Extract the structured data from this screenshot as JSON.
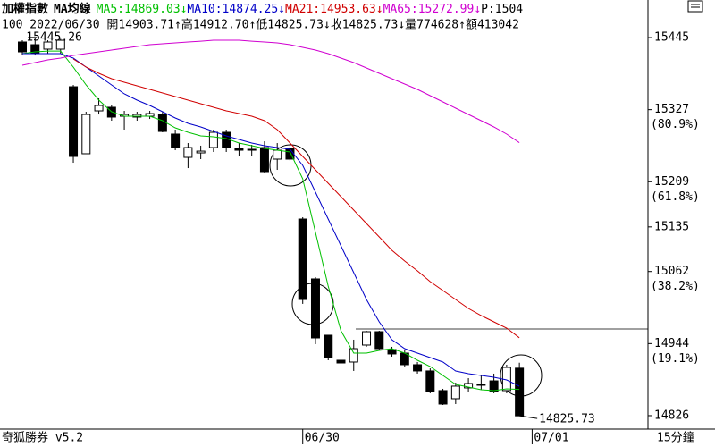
{
  "chart_data": {
    "type": "candlestick",
    "title": "加權指數",
    "subtitle": "MA均線",
    "header_tail": "P:1504",
    "quote_line": "100 2022/06/30 開14903.71↑高14912.70↑低14825.73↓收14825.73↓量774628↑額413042",
    "footer_left": "奇狐勝券 v5.2",
    "period": "15分鐘",
    "annotations": [
      "15445.26",
      "14825.73"
    ],
    "up_color": "#ffffff",
    "down_color": "#000000",
    "categories": [
      null,
      null,
      null,
      null,
      null,
      null,
      null,
      null,
      null,
      null,
      null,
      null,
      null,
      null,
      null,
      null,
      null,
      null,
      null,
      null,
      null,
      null,
      "06/30",
      null,
      null,
      null,
      null,
      null,
      null,
      null,
      null,
      null,
      null,
      null,
      null,
      null,
      null,
      null,
      null,
      null,
      "07/01"
    ],
    "open": [
      15437.7,
      15433.3,
      15426.0,
      15426.0,
      15364.5,
      15254.8,
      15325.0,
      15330.9,
      15316.2,
      15314.8,
      15316.2,
      15319.1,
      15287.0,
      15248.9,
      15256.2,
      15265.0,
      15289.9,
      15263.5,
      15262.1,
      15265.0,
      15246.0,
      15263.5,
      15147.9,
      15049.9,
      14957.7,
      14916.7,
      14913.8,
      14941.6,
      14963.5,
      14934.3,
      14928.4,
      14909.4,
      14899.2,
      14867.0,
      14853.8,
      14871.4,
      14877.2,
      14883.0,
      14867.0,
      14903.71,
      null
    ],
    "high": [
      15440.6,
      15445.26,
      15440.6,
      15443.0,
      15367.4,
      15323.5,
      15345.5,
      15335.2,
      15325.0,
      15323.5,
      15325.0,
      15323.5,
      15294.3,
      15272.3,
      15268.0,
      15294.3,
      15294.3,
      15272.3,
      15269.4,
      15275.2,
      15272.3,
      15272.3,
      15150.9,
      15052.8,
      14957.7,
      14924.0,
      14950.4,
      14965.0,
      14965.0,
      14938.7,
      14932.8,
      14913.8,
      14903.5,
      14869.9,
      14880.1,
      14887.4,
      14891.8,
      14894.8,
      14909.4,
      14912.7,
      null
    ],
    "low": [
      15415.7,
      15415.7,
      15418.7,
      15418.7,
      15240.1,
      15254.8,
      15319.1,
      15308.9,
      15294.3,
      15308.9,
      15311.8,
      15289.9,
      15260.6,
      15231.3,
      15246.0,
      15257.7,
      15257.7,
      15250.4,
      15251.8,
      15224.0,
      15228.4,
      15243.1,
      15009.0,
      14943.1,
      14916.7,
      14906.5,
      14899.2,
      14938.7,
      14932.8,
      14922.6,
      14906.5,
      14894.8,
      14862.6,
      14843.5,
      14845.0,
      14865.5,
      14868.4,
      14862.6,
      14862.6,
      14825.73,
      null
    ],
    "close": [
      15421.6,
      15418.7,
      15437.7,
      15440.6,
      15250.4,
      15319.1,
      15333.8,
      15314.8,
      15319.1,
      15319.1,
      15320.6,
      15291.3,
      15265.0,
      15265.0,
      15259.1,
      15289.9,
      15265.0,
      15260.6,
      15260.6,
      15225.5,
      15260.6,
      15246.0,
      15016.2,
      14953.3,
      14921.1,
      14912.3,
      14935.7,
      14963.5,
      14935.7,
      14927.0,
      14909.4,
      14899.2,
      14865.5,
      14845.0,
      14874.3,
      14878.7,
      14875.8,
      14865.5,
      14905.0,
      14825.73,
      null
    ],
    "series": [
      {
        "name": "MA5:14869.03↓",
        "color": "#00c000",
        "values": [
          15418.7,
          15421.6,
          15423.0,
          15423.0,
          15396.7,
          15367.4,
          15342.6,
          15323.5,
          15316.2,
          15316.2,
          15316.2,
          15308.9,
          15297.2,
          15289.9,
          15284.0,
          15282.6,
          15279.6,
          15272.3,
          15267.9,
          15263.5,
          15260.6,
          15257.7,
          15213.8,
          15126.0,
          15038.2,
          14965.0,
          14928.4,
          14928.4,
          14932.8,
          14935.7,
          14928.4,
          14916.7,
          14906.5,
          14891.8,
          14877.2,
          14872.8,
          14868.4,
          14867.0,
          14869.9,
          14869.03,
          null
        ]
      },
      {
        "name": "MA10:14874.25↓",
        "color": "#0000c8",
        "values": [
          15418.7,
          15418.7,
          15418.7,
          15418.7,
          15411.3,
          15396.7,
          15382.1,
          15367.4,
          15352.8,
          15342.6,
          15333.8,
          15323.5,
          15313.3,
          15304.5,
          15298.7,
          15291.3,
          15284.0,
          15278.2,
          15272.3,
          15267.9,
          15265.0,
          15262.1,
          15235.7,
          15191.8,
          15147.9,
          15104.0,
          15060.1,
          15016.2,
          14979.6,
          14950.4,
          14935.7,
          14928.4,
          14921.1,
          14913.8,
          14899.1,
          14894.8,
          14891.8,
          14888.9,
          14884.5,
          14874.25,
          null
        ]
      },
      {
        "name": "MA21:14953.63↓",
        "color": "#d00000",
        "values": [
          null,
          null,
          null,
          null,
          15409.9,
          15396.7,
          15386.5,
          15377.7,
          15371.8,
          15366.0,
          15360.1,
          15354.3,
          15348.4,
          15342.6,
          15336.7,
          15330.9,
          15325.0,
          15320.6,
          15316.2,
          15308.9,
          15294.3,
          15272.3,
          15250.4,
          15228.4,
          15206.5,
          15184.5,
          15162.6,
          15140.6,
          15118.7,
          15096.7,
          15079.1,
          15063.0,
          15045.5,
          15030.9,
          15016.2,
          15001.6,
          14989.9,
          14979.6,
          14969.4,
          14953.63,
          null
        ]
      },
      {
        "name": "MA65:15272.99↓",
        "color": "#d000d0",
        "values": [
          15399.6,
          15404.0,
          15408.4,
          15411.3,
          15415.7,
          15418.7,
          15421.6,
          15424.5,
          15427.4,
          15430.4,
          15433.3,
          15434.8,
          15436.2,
          15437.7,
          15439.1,
          15440.6,
          15440.6,
          15440.6,
          15439.1,
          15437.7,
          15436.2,
          15433.3,
          15428.9,
          15424.5,
          15418.7,
          15411.3,
          15404.0,
          15395.2,
          15386.5,
          15377.7,
          15368.9,
          15360.1,
          15349.9,
          15339.6,
          15329.4,
          15319.1,
          15308.9,
          15298.7,
          15287.0,
          15272.99,
          null
        ]
      }
    ],
    "ylim": [
      14804.0,
      15506.5
    ],
    "yticks": [
      15445,
      15327,
      15209,
      15135,
      15062,
      14944,
      14826
    ],
    "ytick_notes": [
      null,
      "(80.9%)",
      "(61.8%)",
      null,
      "(38.2%)",
      "(19.1%)",
      null
    ],
    "grid": false
  }
}
